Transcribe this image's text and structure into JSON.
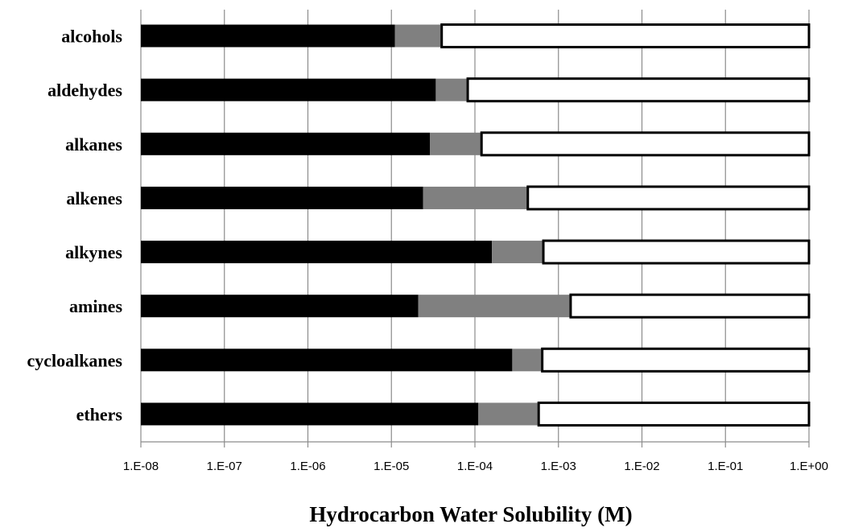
{
  "chart_data": {
    "type": "bar",
    "orientation": "horizontal",
    "stacked": true,
    "x_scale": "log",
    "xlim": [
      1e-08,
      1
    ],
    "xlabel": "Hydrocarbon Water Solubility (M)",
    "x_ticks": [
      {
        "value": 1e-08,
        "label": "1.E-08"
      },
      {
        "value": 1e-07,
        "label": "1.E-07"
      },
      {
        "value": 1e-06,
        "label": "1.E-06"
      },
      {
        "value": 1e-05,
        "label": "1.E-05"
      },
      {
        "value": 0.0001,
        "label": "1.E-04"
      },
      {
        "value": 0.001,
        "label": "1.E-03"
      },
      {
        "value": 0.01,
        "label": "1.E-02"
      },
      {
        "value": 0.1,
        "label": "1.E-01"
      },
      {
        "value": 1,
        "label": "1.E+00"
      }
    ],
    "grid": "vertical",
    "categories": [
      "alcohols",
      "aldehydes",
      "alkanes",
      "alkenes",
      "alkynes",
      "amines",
      "cycloalkanes",
      "ethers"
    ],
    "segments": [
      {
        "color": "#000000",
        "bounds": [
          [
            1e-08,
            1.1e-05
          ],
          [
            1e-08,
            3.4e-05
          ],
          [
            1e-08,
            2.9e-05
          ],
          [
            1e-08,
            2.4e-05
          ],
          [
            1e-08,
            0.00016
          ],
          [
            1e-08,
            2.1e-05
          ],
          [
            1e-08,
            0.00028
          ],
          [
            1e-08,
            0.00011
          ]
        ]
      },
      {
        "color": "#808080",
        "bounds": [
          [
            1.1e-05,
            4e-05
          ],
          [
            3.4e-05,
            8.2e-05
          ],
          [
            2.9e-05,
            0.00012
          ],
          [
            2.4e-05,
            0.00043
          ],
          [
            0.00016,
            0.00066
          ],
          [
            2.1e-05,
            0.0014
          ],
          [
            0.00028,
            0.00064
          ],
          [
            0.00011,
            0.00058
          ]
        ]
      },
      {
        "color": "#ffffff",
        "outline": "#000000",
        "bounds": [
          [
            4e-05,
            1
          ],
          [
            8.2e-05,
            1
          ],
          [
            0.00012,
            1
          ],
          [
            0.00043,
            1
          ],
          [
            0.00066,
            1
          ],
          [
            0.0014,
            1
          ],
          [
            0.00064,
            1
          ],
          [
            0.00058,
            1
          ]
        ]
      }
    ]
  }
}
